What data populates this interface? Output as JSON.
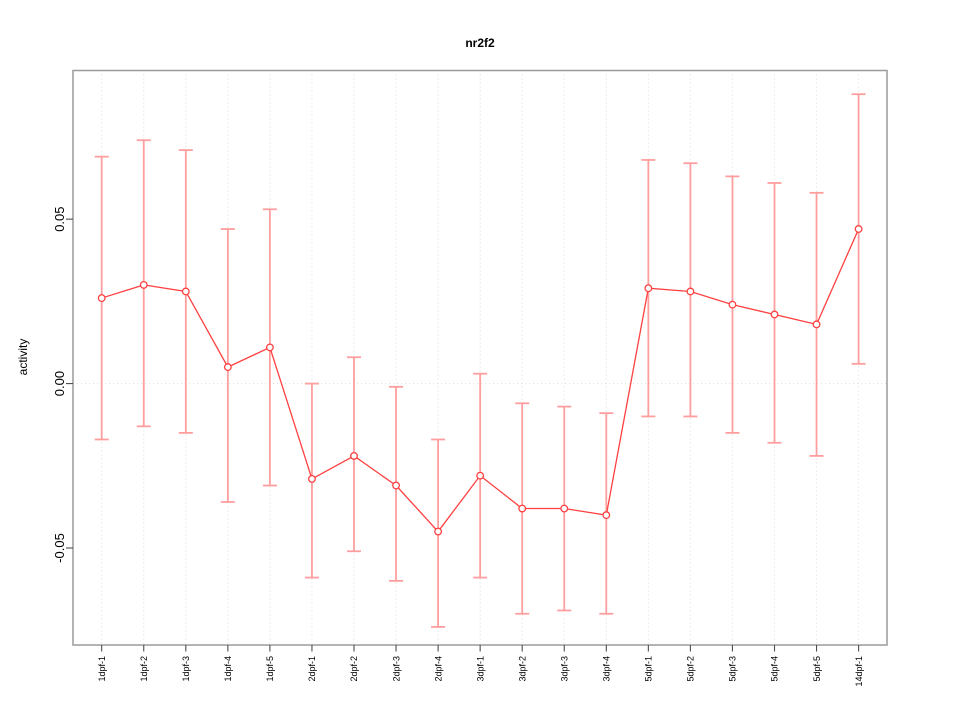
{
  "chart_data": {
    "type": "line",
    "title": "nr2f2",
    "xlabel": "",
    "ylabel": "activity",
    "categories": [
      "1dpf-1",
      "1dpf-2",
      "1dpf-3",
      "1dpf-4",
      "1dpf-5",
      "2dpf-1",
      "2dpf-2",
      "2dpf-3",
      "2dpf-4",
      "3dpf-1",
      "3dpf-2",
      "3dpf-3",
      "3dpf-4",
      "5dpf-1",
      "5dpf-2",
      "5dpf-3",
      "5dpf-4",
      "5dpf-5",
      "14dpf-1"
    ],
    "series": [
      {
        "name": "nr2f2 activity",
        "values": [
          0.026,
          0.03,
          0.028,
          0.005,
          0.011,
          -0.029,
          -0.022,
          -0.031,
          -0.045,
          -0.028,
          -0.038,
          -0.038,
          -0.04,
          0.029,
          0.028,
          0.024,
          0.021,
          0.018,
          0.047
        ],
        "error_upper": [
          0.069,
          0.074,
          0.071,
          0.047,
          0.053,
          0.0,
          0.008,
          -0.001,
          -0.017,
          0.003,
          -0.006,
          -0.007,
          -0.009,
          0.068,
          0.067,
          0.063,
          0.061,
          0.058,
          0.088
        ],
        "error_lower": [
          -0.017,
          -0.013,
          -0.015,
          -0.036,
          -0.031,
          -0.059,
          -0.051,
          -0.06,
          -0.074,
          -0.059,
          -0.07,
          -0.069,
          -0.07,
          -0.01,
          -0.01,
          -0.015,
          -0.018,
          -0.022,
          0.006
        ]
      }
    ],
    "yticks": [
      -0.05,
      0,
      0.05
    ],
    "ytick_labels": [
      "-0.05",
      "0.00",
      "0.05"
    ],
    "ylim": [
      -0.0795,
      0.0952
    ],
    "grid": {
      "vertical_dotted": true,
      "zero_line_dotted": true,
      "horizontal_gridlines": false
    },
    "legend": "none",
    "marker": "open-circle",
    "colors": {
      "line": "#ff4040",
      "marker": "#ff4040",
      "marker_fill": "#ffffff",
      "error_bar": "#ff9e9e",
      "grid": "#dbdbdb",
      "box": "#9a9a9a",
      "tick": "#4d4d4d",
      "text": "#000000",
      "background": "#ffffff"
    }
  }
}
